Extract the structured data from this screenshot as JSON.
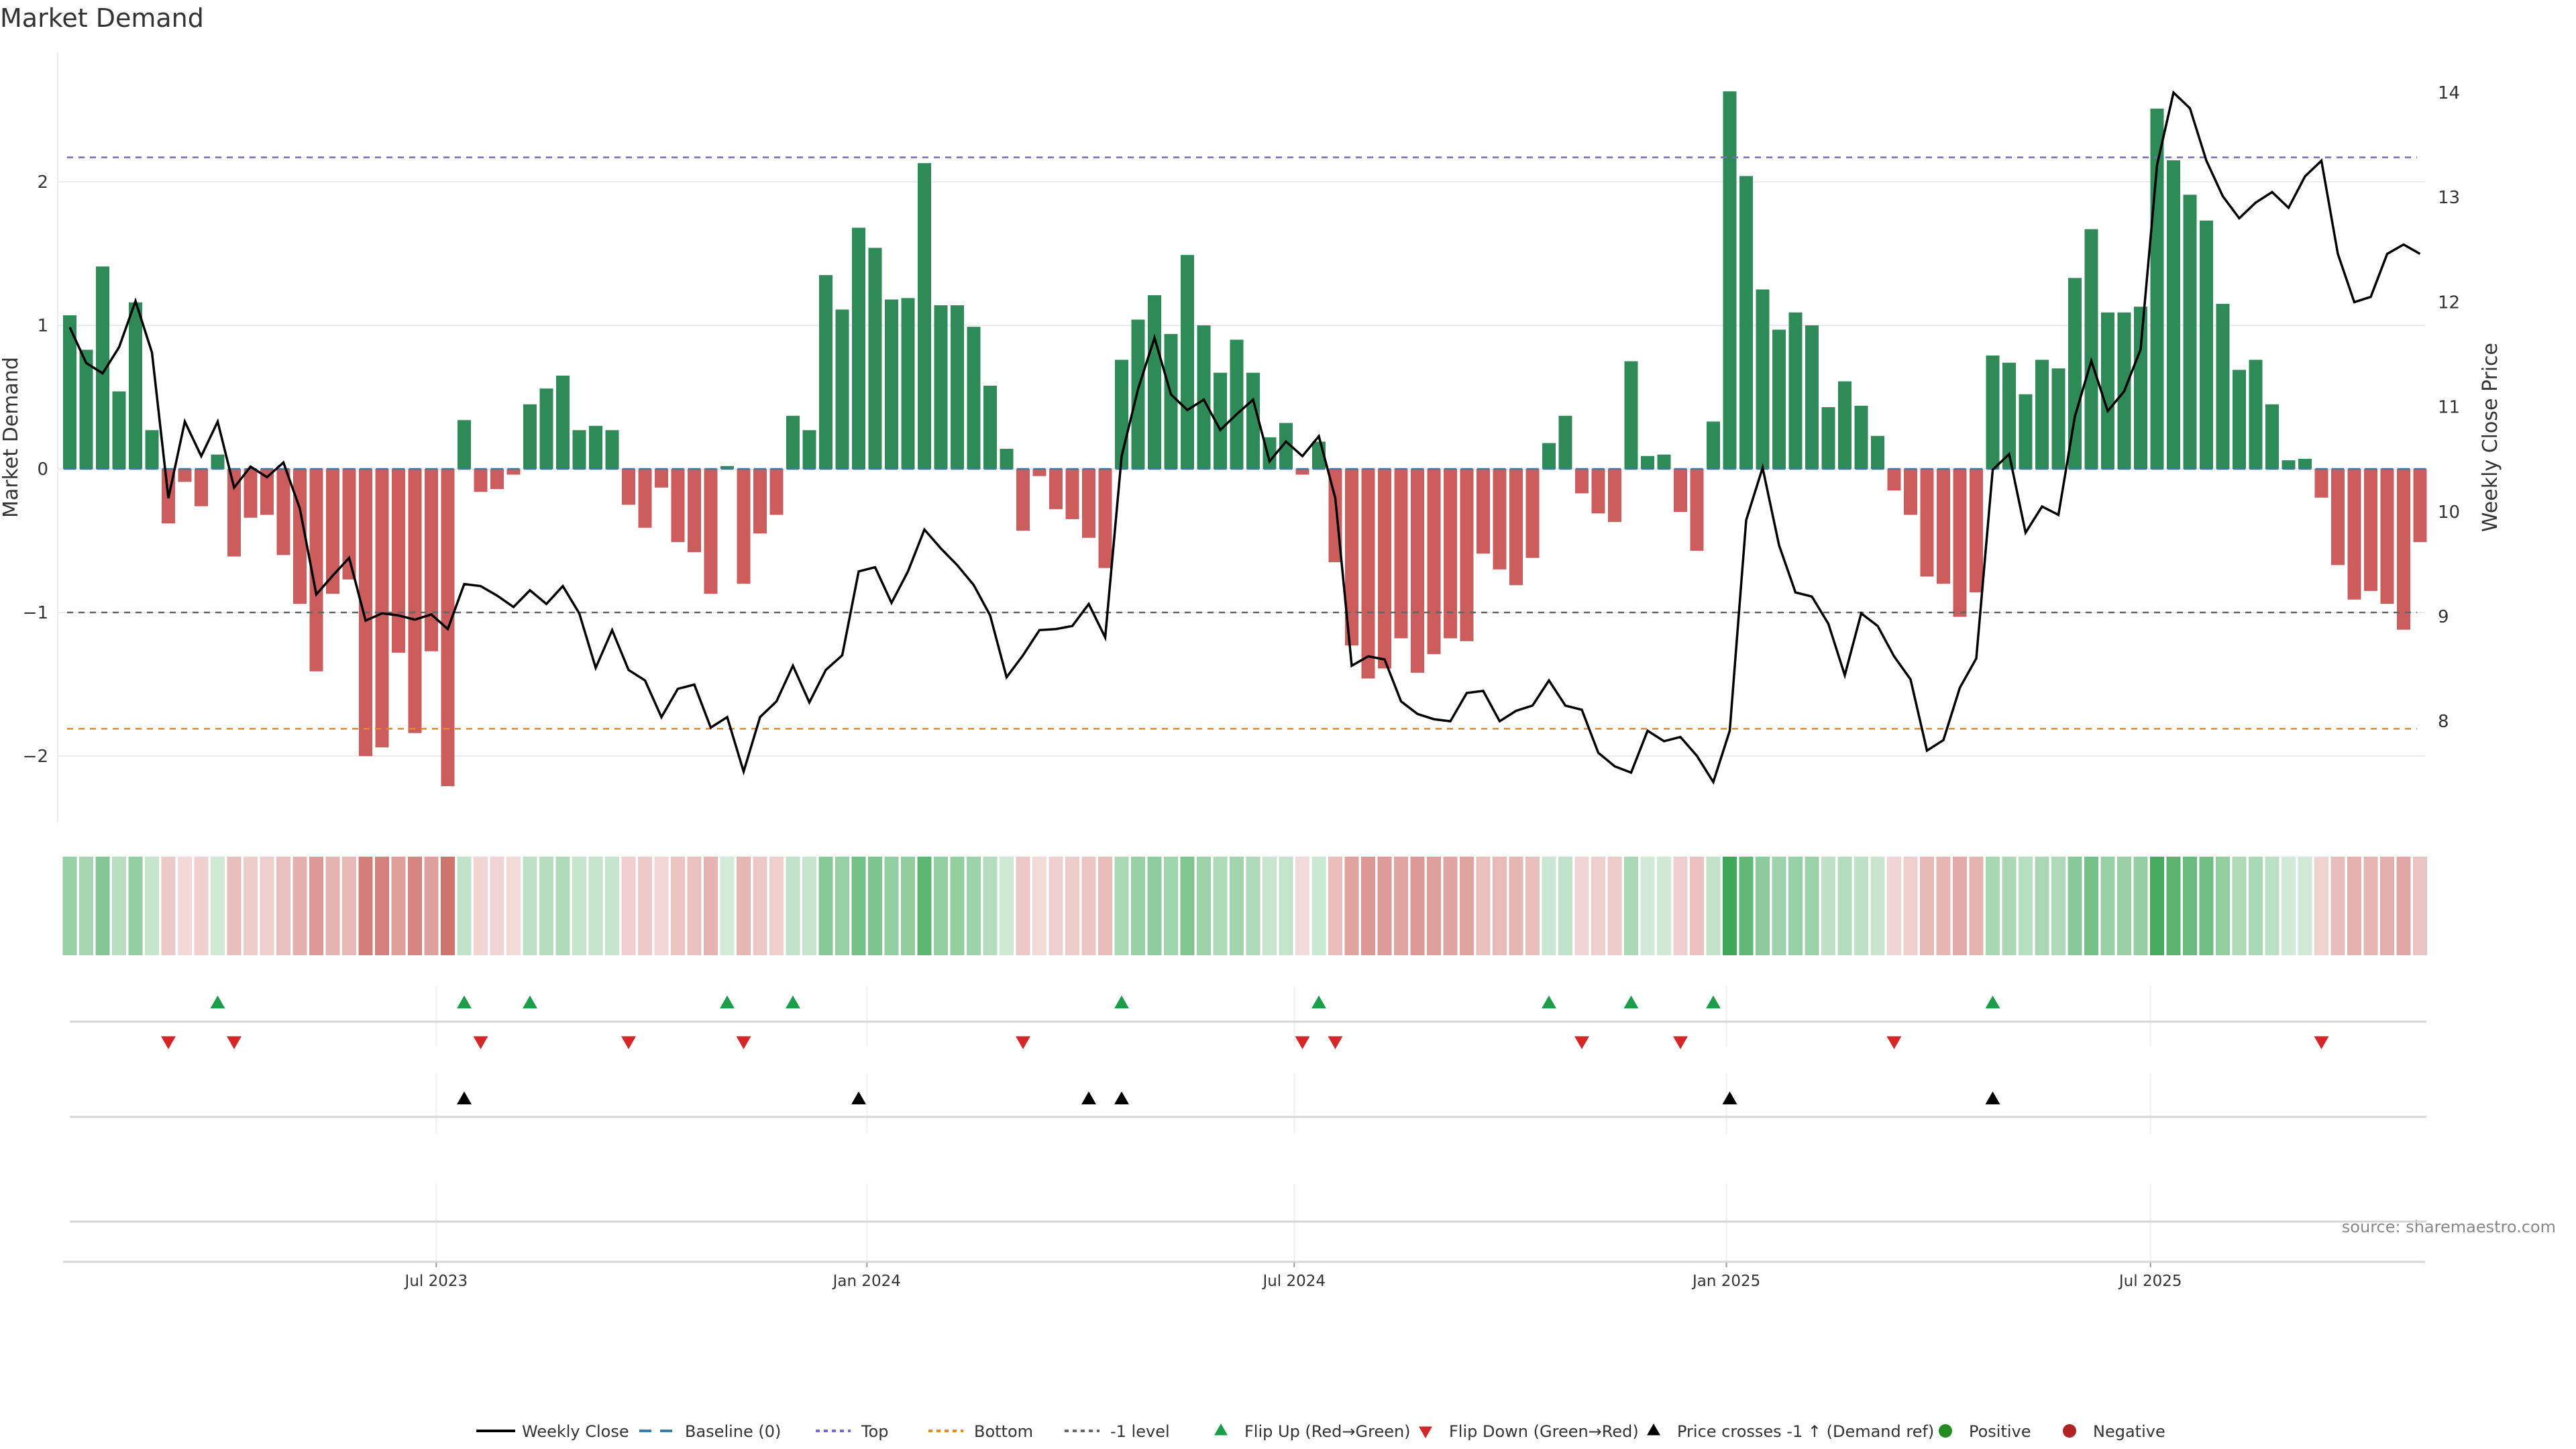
{
  "chart_data": {
    "type": "bar",
    "title": "Market Demand",
    "ylabel_left": "Market Demand",
    "ylabel_right": "Weekly Close Price",
    "source": "source: sharemaestro.com",
    "ylim_left": [
      -2.45,
      2.85
    ],
    "ylim_right": [
      7.2,
      14.4
    ],
    "yticks_left": [
      {
        "value": 2,
        "label": "2"
      },
      {
        "value": 1,
        "label": "1"
      },
      {
        "value": 0,
        "label": "0"
      },
      {
        "value": -1,
        "label": "−1"
      },
      {
        "value": -2,
        "label": "−2"
      }
    ],
    "yticks_right": [
      {
        "value": 14,
        "label": "14"
      },
      {
        "value": 13,
        "label": "13"
      },
      {
        "value": 12,
        "label": "12"
      },
      {
        "value": 11,
        "label": "11"
      },
      {
        "value": 10,
        "label": "10"
      },
      {
        "value": 9,
        "label": "9"
      },
      {
        "value": 8,
        "label": "8"
      }
    ],
    "xticks": [
      {
        "index": 22.3,
        "label": "Jul 2023"
      },
      {
        "index": 48.5,
        "label": "Jan 2024"
      },
      {
        "index": 74.5,
        "label": "Jul 2024"
      },
      {
        "index": 100.8,
        "label": "Jan 2025"
      },
      {
        "index": 126.6,
        "label": "Jul 2025"
      }
    ],
    "reference_lines": {
      "baseline": 0,
      "top": 2.17,
      "bottom": -1.81,
      "minus_one": -1
    },
    "demand": [
      1.07,
      0.83,
      1.41,
      0.54,
      1.16,
      0.27,
      -0.38,
      -0.09,
      -0.26,
      0.1,
      -0.61,
      -0.34,
      -0.32,
      -0.6,
      -0.94,
      -1.41,
      -0.87,
      -0.77,
      -2.0,
      -1.94,
      -1.28,
      -1.84,
      -1.27,
      -2.21,
      0.34,
      -0.16,
      -0.14,
      -0.04,
      0.45,
      0.56,
      0.65,
      0.27,
      0.3,
      0.27,
      -0.25,
      -0.41,
      -0.13,
      -0.51,
      -0.58,
      -0.87,
      0.02,
      -0.8,
      -0.45,
      -0.32,
      0.37,
      0.27,
      1.35,
      1.11,
      1.68,
      1.54,
      1.18,
      1.19,
      2.13,
      1.14,
      1.14,
      0.99,
      0.58,
      0.14,
      -0.43,
      -0.05,
      -0.28,
      -0.35,
      -0.48,
      -0.69,
      0.76,
      1.04,
      1.21,
      0.94,
      1.49,
      1.0,
      0.67,
      0.9,
      0.67,
      0.22,
      0.32,
      -0.04,
      0.19,
      -0.65,
      -1.23,
      -1.46,
      -1.39,
      -1.18,
      -1.42,
      -1.29,
      -1.18,
      -1.2,
      -0.59,
      -0.7,
      -0.81,
      -0.62,
      0.18,
      0.37,
      -0.17,
      -0.31,
      -0.37,
      0.75,
      0.09,
      0.1,
      -0.3,
      -0.57,
      0.33,
      2.63,
      2.04,
      1.25,
      0.97,
      1.09,
      1.0,
      0.43,
      0.61,
      0.44,
      0.23,
      -0.15,
      -0.32,
      -0.75,
      -0.8,
      -1.03,
      -0.86,
      0.79,
      0.74,
      0.52,
      0.76,
      0.7,
      1.33,
      1.67,
      1.09,
      1.09,
      1.13,
      2.51,
      2.15,
      1.91,
      1.73,
      1.15,
      0.69,
      0.76,
      0.45,
      0.06,
      0.07,
      -0.2,
      -0.67,
      -0.91,
      -0.85,
      -0.94,
      -1.12,
      -0.51
    ],
    "weekly_close": [
      11.76,
      11.42,
      11.32,
      11.57,
      12.01,
      11.52,
      10.13,
      10.86,
      10.53,
      10.86,
      10.23,
      10.43,
      10.33,
      10.47,
      10.03,
      9.21,
      9.39,
      9.56,
      8.96,
      9.03,
      9.01,
      8.97,
      9.02,
      8.88,
      9.31,
      9.29,
      9.2,
      9.09,
      9.25,
      9.12,
      9.29,
      9.03,
      8.51,
      8.87,
      8.49,
      8.39,
      8.04,
      8.31,
      8.35,
      7.94,
      8.04,
      7.52,
      8.04,
      8.19,
      8.53,
      8.18,
      8.49,
      8.63,
      9.43,
      9.47,
      9.13,
      9.43,
      9.83,
      9.65,
      9.49,
      9.3,
      9.01,
      8.42,
      8.63,
      8.87,
      8.88,
      8.91,
      9.12,
      8.8,
      10.53,
      11.17,
      11.66,
      11.12,
      10.97,
      11.07,
      10.78,
      10.93,
      11.07,
      10.48,
      10.67,
      10.53,
      10.72,
      10.13,
      8.53,
      8.62,
      8.59,
      8.19,
      8.07,
      8.02,
      8.0,
      8.27,
      8.29,
      8.0,
      8.1,
      8.15,
      8.39,
      8.15,
      8.11,
      7.7,
      7.57,
      7.51,
      7.91,
      7.81,
      7.85,
      7.67,
      7.42,
      7.91,
      9.92,
      10.42,
      9.68,
      9.23,
      9.19,
      8.93,
      8.44,
      9.03,
      8.91,
      8.62,
      8.4,
      7.72,
      7.82,
      8.32,
      8.6,
      10.4,
      10.55,
      9.8,
      10.05,
      9.97,
      10.91,
      11.44,
      10.96,
      11.15,
      11.55,
      13.31,
      14.0,
      13.85,
      13.35,
      13.01,
      12.8,
      12.95,
      13.05,
      12.9,
      13.2,
      13.35,
      12.46,
      12.0,
      12.05,
      12.46,
      12.55,
      12.46
    ],
    "flip_up_indices": [
      9,
      24,
      28,
      40,
      44,
      64,
      76,
      90,
      95,
      100,
      117
    ],
    "flip_down_indices": [
      6,
      10,
      25,
      34,
      41,
      58,
      75,
      77,
      92,
      98,
      111,
      137
    ],
    "price_cross_indices": [
      24,
      48,
      62,
      64,
      101,
      117
    ],
    "legend": [
      {
        "key": "weekly-close",
        "label": "Weekly Close",
        "style": "line",
        "color": "#000000"
      },
      {
        "key": "baseline",
        "label": "Baseline (0)",
        "style": "dash",
        "color": "#3a7ca5"
      },
      {
        "key": "top",
        "label": "Top",
        "style": "dot",
        "color": "#7b68c8"
      },
      {
        "key": "bottom",
        "label": "Bottom",
        "style": "dot",
        "color": "#e08a2c"
      },
      {
        "key": "minus-one",
        "label": "-1 level",
        "style": "dot",
        "color": "#666666"
      },
      {
        "key": "flip-up",
        "label": "Flip Up (Red→Green)",
        "style": "tri-up",
        "color": "#1a9e4a"
      },
      {
        "key": "flip-down",
        "label": "Flip Down (Green→Red)",
        "style": "tri-down",
        "color": "#d62728"
      },
      {
        "key": "price-cross",
        "label": "Price crosses -1 ↑ (Demand ref)",
        "style": "tri-up",
        "color": "#000000"
      },
      {
        "key": "positive",
        "label": "Positive",
        "style": "dot-marker",
        "color": "#228b22"
      },
      {
        "key": "negative",
        "label": "Negative",
        "style": "dot-marker",
        "color": "#b22222"
      }
    ],
    "colors": {
      "positive_bar": "#2e8b57",
      "negative_bar": "#cd5c5c",
      "heat_positive": "#3fa858",
      "heat_negative": "#c9605a",
      "grid": "#ebebeb",
      "axis": "#d9d9d9"
    }
  }
}
